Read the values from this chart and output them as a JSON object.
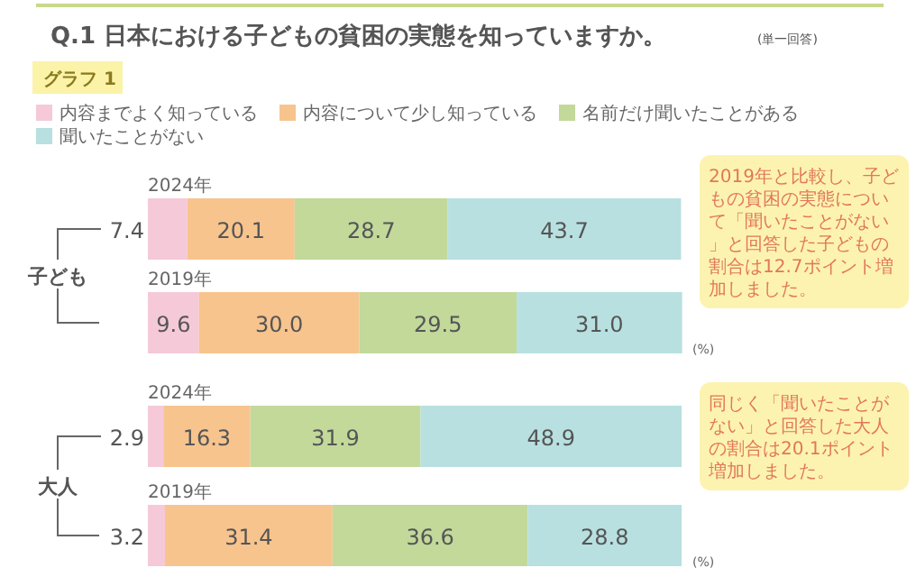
{
  "chart_data": {
    "type": "bar",
    "orientation": "horizontal",
    "stacked": true,
    "title": "Q.1 日本における子どもの貧困の実態を知っていますか。",
    "subtitle": "グラフ 1",
    "categories": [
      "2024年",
      "2019年",
      "2024年",
      "2019年"
    ],
    "xlim": [
      0,
      100
    ],
    "series": [
      {
        "name": "内容までよく知っている",
        "color": "#f5c9d8",
        "values": [
          7.4,
          9.6,
          2.9,
          3.2
        ],
        "value_labels": [
          "7.4",
          "9.6",
          "2.9",
          "3.2"
        ]
      },
      {
        "name": "内容について少し知っている",
        "color": "#f7c48e",
        "values": [
          20.1,
          30.0,
          16.3,
          31.4
        ],
        "value_labels": [
          "20.1",
          "30.0",
          "16.3",
          "31.4"
        ]
      },
      {
        "name": "名前だけ聞いたことがある",
        "color": "#c2d99a",
        "values": [
          28.7,
          29.5,
          31.9,
          36.6
        ],
        "value_labels": [
          "28.7",
          "29.5",
          "31.9",
          "36.6"
        ]
      },
      {
        "name": "聞いたことがない",
        "color": "#b8e0e0",
        "values": [
          43.7,
          31.0,
          48.9,
          28.8
        ],
        "value_labels": [
          "43.7",
          "31.0",
          "48.9",
          "28.8"
        ]
      }
    ],
    "legend": "top",
    "annotations": [
      "(単一回答)",
      "子ども",
      "大人",
      "(%)",
      "(%)",
      "2019年と比較し、子どもの貧困の実態について「聞いたことがない」と回答した子どもの割合は12.7ポイント増加しました。",
      "同じく「聞いたことがない」と回答した大人の割合は20.1ポイント増加しました。"
    ]
  }
}
